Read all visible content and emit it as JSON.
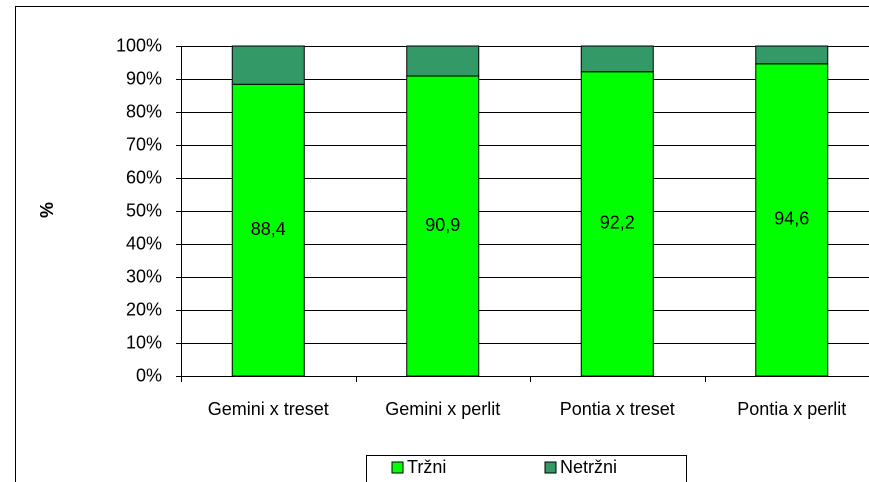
{
  "chart_data": {
    "type": "bar",
    "stacked": true,
    "y_axis_label": "%",
    "categories": [
      "Gemini x treset",
      "Gemini x perlit",
      "Pontia x treset",
      "Pontia x perlit"
    ],
    "series": [
      {
        "name": "Tržni",
        "color": "#00ff00",
        "values": [
          88.4,
          90.9,
          92.2,
          94.6
        ],
        "value_labels": [
          "88,4",
          "90,9",
          "92,2",
          "94,6"
        ]
      },
      {
        "name": "Netržni",
        "color": "#339966",
        "values": [
          11.6,
          9.1,
          7.8,
          5.4
        ]
      }
    ],
    "ylim": [
      0,
      100
    ],
    "yticks": [
      {
        "value": 0,
        "label": "0%"
      },
      {
        "value": 10,
        "label": "10%"
      },
      {
        "value": 20,
        "label": "20%"
      },
      {
        "value": 30,
        "label": "30%"
      },
      {
        "value": 40,
        "label": "40%"
      },
      {
        "value": 50,
        "label": "50%"
      },
      {
        "value": 60,
        "label": "60%"
      },
      {
        "value": 70,
        "label": "70%"
      },
      {
        "value": 80,
        "label": "80%"
      },
      {
        "value": 90,
        "label": "90%"
      },
      {
        "value": 100,
        "label": "100%"
      }
    ],
    "grid": true,
    "legend": "bottom"
  }
}
